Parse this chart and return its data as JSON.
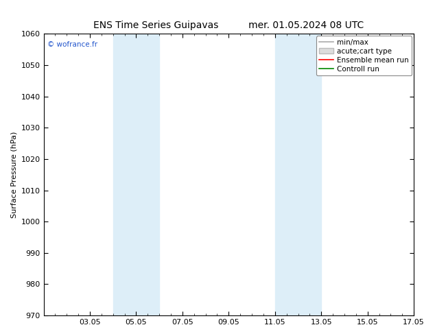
{
  "title_left": "ENS Time Series Guipavas",
  "title_right": "mer. 01.05.2024 08 UTC",
  "ylabel": "Surface Pressure (hPa)",
  "ylim": [
    970,
    1060
  ],
  "yticks": [
    970,
    980,
    990,
    1000,
    1010,
    1020,
    1030,
    1040,
    1050,
    1060
  ],
  "xlim": [
    0,
    16
  ],
  "xtick_positions": [
    2,
    4,
    6,
    8,
    10,
    12,
    14,
    16
  ],
  "xtick_labels": [
    "03.05",
    "05.05",
    "07.05",
    "09.05",
    "11.05",
    "13.05",
    "15.05",
    "17.05"
  ],
  "watermark": "© wofrance.fr",
  "background_color": "#ffffff",
  "plot_bg_color": "#ffffff",
  "shaded_bands": [
    {
      "xmin": 3.0,
      "xmax": 5.0,
      "color": "#ddeef8"
    },
    {
      "xmin": 10.0,
      "xmax": 12.0,
      "color": "#ddeef8"
    }
  ],
  "legend_entries": [
    {
      "label": "min/max",
      "color": "#aaaaaa",
      "lw": 1.2,
      "style": "-"
    },
    {
      "label": "acute;cart type",
      "color": "#cccccc",
      "lw": 6,
      "style": "-"
    },
    {
      "label": "Ensemble mean run",
      "color": "#ff0000",
      "lw": 1.2,
      "style": "-"
    },
    {
      "label": "Controll run",
      "color": "#008800",
      "lw": 1.2,
      "style": "-"
    }
  ],
  "title_fontsize": 10,
  "tick_fontsize": 8,
  "legend_fontsize": 7.5,
  "ylabel_fontsize": 8
}
